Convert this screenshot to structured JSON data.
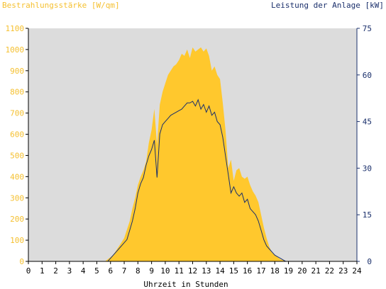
{
  "chart_data": {
    "type": "area",
    "left_title": "Bestrahlungsstärke [W/qm]",
    "right_title": "Leistung der Anlage [kW]",
    "xlabel": "Uhrzeit in Stunden",
    "x_ticks": [
      "0",
      "1",
      "2",
      "3",
      "4",
      "5",
      "6",
      "7",
      "8",
      "9",
      "10",
      "11",
      "12",
      "13",
      "14",
      "15",
      "16",
      "17",
      "18",
      "19",
      "20",
      "21",
      "22",
      "23",
      "24"
    ],
    "x_range": [
      0,
      24
    ],
    "left_axis": {
      "range": [
        0,
        1100
      ],
      "ticks": [
        "0",
        "100",
        "200",
        "300",
        "400",
        "500",
        "600",
        "700",
        "800",
        "900",
        "1000",
        "1100"
      ]
    },
    "right_axis": {
      "range": [
        0,
        75
      ],
      "ticks": [
        "0",
        "15",
        "30",
        "45",
        "60",
        "75"
      ]
    },
    "grid": false,
    "colors": {
      "plot_bg": "#dcdcdc",
      "irradiance_fill": "#ffc82d",
      "power_line": "#1a2f6b",
      "left_axis_text": "#f5c030",
      "right_axis_text": "#1a2f6b"
    },
    "series": [
      {
        "axis": "left",
        "style": "area",
        "x": [
          0,
          5.6,
          5.8,
          6.0,
          6.2,
          6.4,
          6.6,
          6.8,
          7.0,
          7.2,
          7.4,
          7.6,
          7.8,
          8.0,
          8.2,
          8.4,
          8.6,
          8.8,
          9.0,
          9.2,
          9.4,
          9.6,
          9.8,
          10.0,
          10.2,
          10.4,
          10.6,
          10.8,
          11.0,
          11.2,
          11.4,
          11.6,
          11.8,
          12.0,
          12.2,
          12.4,
          12.6,
          12.8,
          13.0,
          13.2,
          13.4,
          13.6,
          13.8,
          14.0,
          14.2,
          14.4,
          14.6,
          14.8,
          15.0,
          15.2,
          15.4,
          15.6,
          15.8,
          16.0,
          16.2,
          16.4,
          16.6,
          16.8,
          17.0,
          17.2,
          17.4,
          17.6,
          17.8,
          18.0,
          18.2,
          18.4,
          18.6,
          18.8,
          19.0,
          19.2,
          24
        ],
        "values": [
          0,
          0,
          10,
          20,
          30,
          50,
          70,
          90,
          110,
          150,
          190,
          250,
          300,
          360,
          400,
          430,
          470,
          560,
          620,
          720,
          550,
          740,
          800,
          840,
          880,
          900,
          920,
          930,
          950,
          980,
          970,
          1000,
          960,
          1010,
          990,
          1000,
          1010,
          990,
          1005,
          970,
          900,
          920,
          880,
          860,
          750,
          620,
          440,
          480,
          380,
          430,
          440,
          400,
          390,
          400,
          360,
          330,
          310,
          280,
          220,
          160,
          110,
          70,
          40,
          30,
          20,
          10,
          5,
          2,
          0,
          0,
          0
        ]
      },
      {
        "axis": "right",
        "style": "line",
        "x": [
          0,
          5.8,
          6.0,
          6.2,
          6.4,
          6.6,
          6.8,
          7.0,
          7.2,
          7.4,
          7.6,
          7.8,
          8.0,
          8.2,
          8.4,
          8.6,
          8.8,
          9.0,
          9.2,
          9.4,
          9.6,
          9.8,
          10.0,
          10.2,
          10.4,
          10.6,
          10.8,
          11.0,
          11.2,
          11.4,
          11.6,
          11.8,
          12.0,
          12.2,
          12.4,
          12.6,
          12.8,
          13.0,
          13.2,
          13.4,
          13.6,
          13.8,
          14.0,
          14.2,
          14.4,
          14.6,
          14.8,
          15.0,
          15.2,
          15.4,
          15.6,
          15.8,
          16.0,
          16.2,
          16.4,
          16.6,
          16.8,
          17.0,
          17.2,
          17.4,
          17.6,
          17.8,
          18.0,
          18.2,
          18.4,
          18.6,
          18.8,
          19.0,
          19.2,
          24
        ],
        "values": [
          0,
          0,
          1,
          2,
          3,
          4,
          5,
          6,
          7,
          10,
          13,
          17,
          22,
          25,
          27,
          31,
          34,
          36,
          39,
          27,
          41,
          44,
          45,
          46,
          47,
          47.5,
          48,
          48.5,
          49,
          50,
          51,
          51,
          51.5,
          50,
          52,
          49,
          50.5,
          48,
          50,
          47,
          48,
          45,
          44,
          40,
          34,
          28,
          22,
          24,
          22,
          21,
          22,
          19,
          20,
          17,
          16,
          15,
          13,
          10,
          7,
          5,
          4,
          3,
          2,
          1.5,
          1,
          0.5,
          0,
          0,
          0,
          0
        ]
      }
    ]
  }
}
